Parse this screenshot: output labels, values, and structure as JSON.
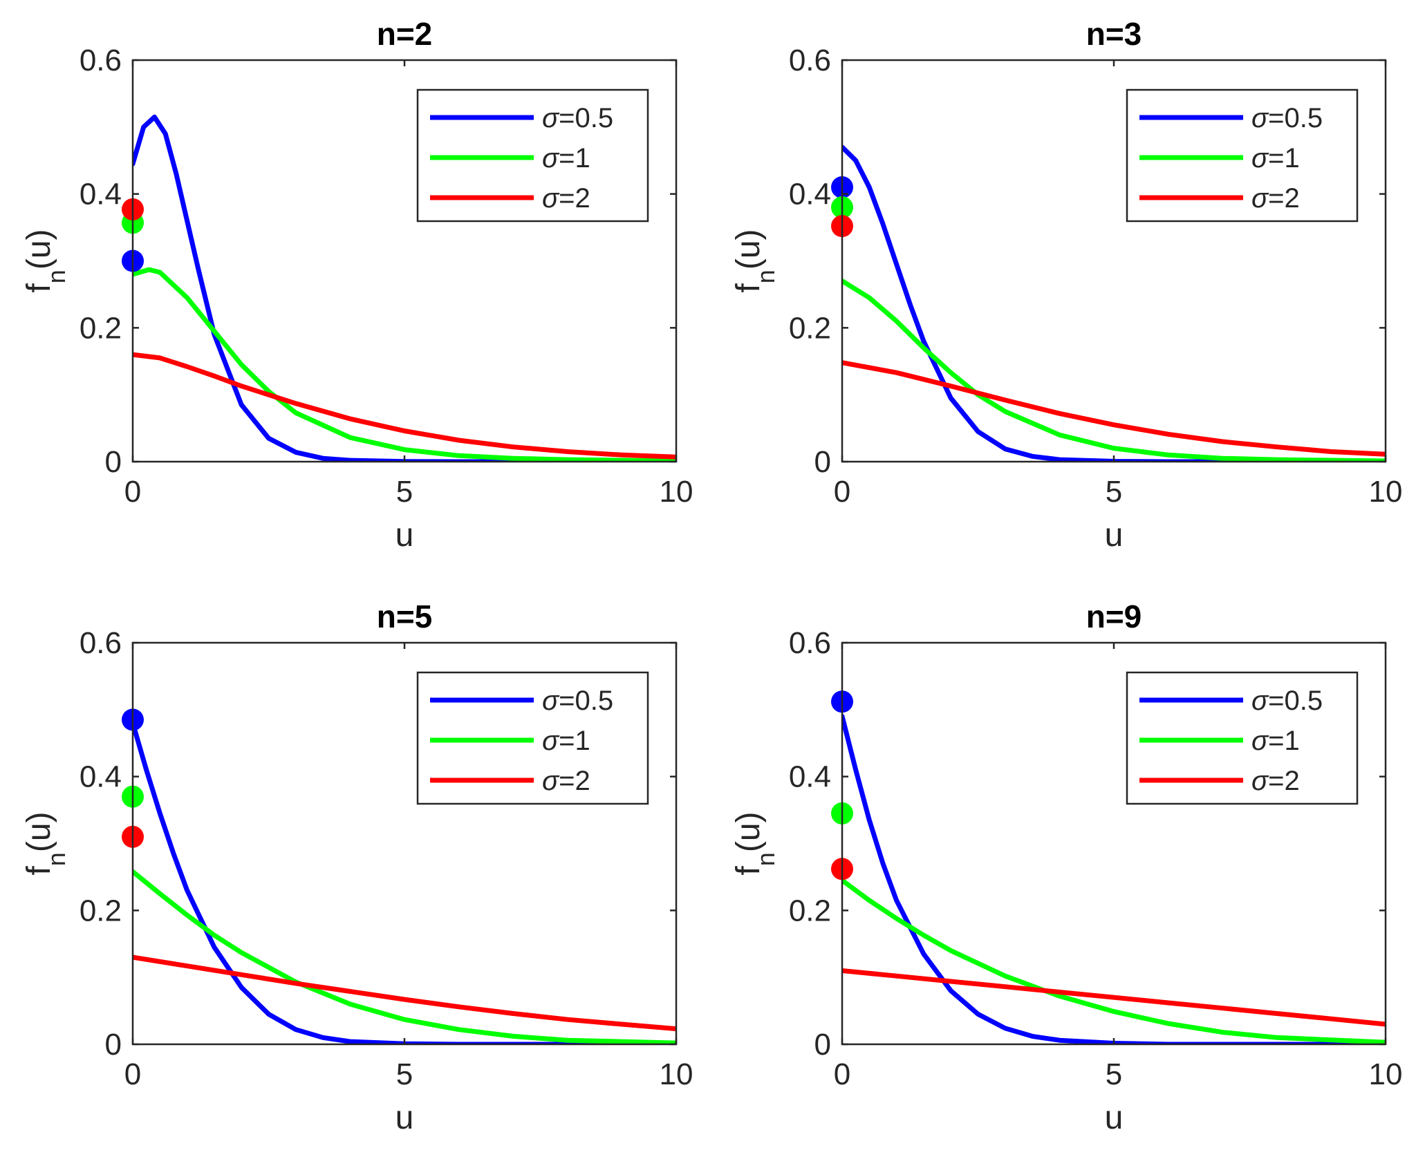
{
  "chart_data": [
    {
      "type": "line",
      "title": "n=2",
      "xlabel": "u",
      "ylabel_main": "f",
      "ylabel_sub": "n",
      "ylabel_tail": "(u)",
      "xlim": [
        0,
        10
      ],
      "ylim": [
        0,
        0.6
      ],
      "xticks": [
        0,
        5,
        10
      ],
      "xtick_labels": [
        "0",
        "5",
        "10"
      ],
      "yticks": [
        0,
        0.2,
        0.4,
        0.6
      ],
      "ytick_labels": [
        "0",
        "0.2",
        "0.4",
        "0.6"
      ],
      "legend_position": "top-right",
      "series": [
        {
          "name": "σ=0.5",
          "symbol": "σ",
          "suffix": "=0.5",
          "color": "#0000ff",
          "x": [
            0,
            0.2,
            0.4,
            0.6,
            0.8,
            1.0,
            1.2,
            1.5,
            2.0,
            2.5,
            3.0,
            3.5,
            4.0,
            5.0,
            6.0,
            8.0,
            10.0
          ],
          "y": [
            0.445,
            0.5,
            0.515,
            0.49,
            0.43,
            0.36,
            0.29,
            0.19,
            0.085,
            0.035,
            0.014,
            0.005,
            0.002,
            0.0003,
            0,
            0,
            0
          ],
          "marker": {
            "x": 0,
            "y": 0.3
          }
        },
        {
          "name": "σ=1",
          "symbol": "σ",
          "suffix": "=1",
          "color": "#00ff00",
          "x": [
            0,
            0.3,
            0.5,
            1.0,
            1.5,
            2.0,
            2.5,
            3.0,
            4.0,
            5.0,
            6.0,
            7.0,
            8.0,
            10.0
          ],
          "y": [
            0.28,
            0.287,
            0.283,
            0.245,
            0.195,
            0.145,
            0.105,
            0.073,
            0.036,
            0.018,
            0.009,
            0.005,
            0.003,
            0.001
          ],
          "marker": {
            "x": 0,
            "y": 0.357
          }
        },
        {
          "name": "σ=2",
          "symbol": "σ",
          "suffix": "=2",
          "color": "#ff0000",
          "x": [
            0,
            0.5,
            1.0,
            1.5,
            2.0,
            3.0,
            4.0,
            5.0,
            6.0,
            7.0,
            8.0,
            9.0,
            10.0
          ],
          "y": [
            0.16,
            0.155,
            0.142,
            0.128,
            0.113,
            0.087,
            0.064,
            0.046,
            0.032,
            0.022,
            0.015,
            0.01,
            0.007
          ],
          "marker": {
            "x": 0,
            "y": 0.377
          }
        }
      ]
    },
    {
      "type": "line",
      "title": "n=3",
      "xlabel": "u",
      "ylabel_main": "f",
      "ylabel_sub": "n",
      "ylabel_tail": "(u)",
      "xlim": [
        0,
        10
      ],
      "ylim": [
        0,
        0.6
      ],
      "xticks": [
        0,
        5,
        10
      ],
      "xtick_labels": [
        "0",
        "5",
        "10"
      ],
      "yticks": [
        0,
        0.2,
        0.4,
        0.6
      ],
      "ytick_labels": [
        "0",
        "0.2",
        "0.4",
        "0.6"
      ],
      "legend_position": "top-right",
      "series": [
        {
          "name": "σ=0.5",
          "symbol": "σ",
          "suffix": "=0.5",
          "color": "#0000ff",
          "x": [
            0,
            0.25,
            0.5,
            0.75,
            1.0,
            1.25,
            1.5,
            2.0,
            2.5,
            3.0,
            3.5,
            4.0,
            5.0,
            6.0,
            8.0,
            10.0
          ],
          "y": [
            0.47,
            0.45,
            0.41,
            0.355,
            0.295,
            0.235,
            0.18,
            0.095,
            0.045,
            0.019,
            0.008,
            0.003,
            0.0005,
            0,
            0,
            0
          ],
          "marker": {
            "x": 0,
            "y": 0.41
          }
        },
        {
          "name": "σ=1",
          "symbol": "σ",
          "suffix": "=1",
          "color": "#00ff00",
          "x": [
            0,
            0.5,
            1.0,
            1.5,
            2.0,
            2.5,
            3.0,
            4.0,
            5.0,
            6.0,
            7.0,
            8.0,
            10.0
          ],
          "y": [
            0.27,
            0.245,
            0.21,
            0.17,
            0.133,
            0.1,
            0.075,
            0.04,
            0.02,
            0.01,
            0.005,
            0.003,
            0.001
          ],
          "marker": {
            "x": 0,
            "y": 0.38
          }
        },
        {
          "name": "σ=2",
          "symbol": "σ",
          "suffix": "=2",
          "color": "#ff0000",
          "x": [
            0,
            1.0,
            2.0,
            3.0,
            4.0,
            5.0,
            6.0,
            7.0,
            8.0,
            9.0,
            10.0
          ],
          "y": [
            0.148,
            0.133,
            0.113,
            0.092,
            0.072,
            0.055,
            0.041,
            0.03,
            0.022,
            0.015,
            0.011
          ],
          "marker": {
            "x": 0,
            "y": 0.352
          }
        }
      ]
    },
    {
      "type": "line",
      "title": "n=5",
      "xlabel": "u",
      "ylabel_main": "f",
      "ylabel_sub": "n",
      "ylabel_tail": "(u)",
      "xlim": [
        0,
        10
      ],
      "ylim": [
        0,
        0.6
      ],
      "xticks": [
        0,
        5,
        10
      ],
      "xtick_labels": [
        "0",
        "5",
        "10"
      ],
      "yticks": [
        0,
        0.2,
        0.4,
        0.6
      ],
      "ytick_labels": [
        "0",
        "0.2",
        "0.4",
        "0.6"
      ],
      "legend_position": "top-right",
      "series": [
        {
          "name": "σ=0.5",
          "symbol": "σ",
          "suffix": "=0.5",
          "color": "#0000ff",
          "x": [
            0,
            0.25,
            0.5,
            0.75,
            1.0,
            1.5,
            2.0,
            2.5,
            3.0,
            3.5,
            4.0,
            5.0,
            6.0,
            8.0,
            10.0
          ],
          "y": [
            0.48,
            0.41,
            0.345,
            0.285,
            0.23,
            0.145,
            0.085,
            0.045,
            0.022,
            0.01,
            0.004,
            0.0008,
            0,
            0,
            0
          ],
          "marker": {
            "x": 0,
            "y": 0.485
          }
        },
        {
          "name": "σ=1",
          "symbol": "σ",
          "suffix": "=1",
          "color": "#00ff00",
          "x": [
            0,
            0.5,
            1.0,
            1.5,
            2.0,
            3.0,
            4.0,
            5.0,
            6.0,
            7.0,
            8.0,
            10.0
          ],
          "y": [
            0.258,
            0.225,
            0.193,
            0.163,
            0.137,
            0.093,
            0.06,
            0.037,
            0.022,
            0.012,
            0.006,
            0.002
          ],
          "marker": {
            "x": 0,
            "y": 0.37
          }
        },
        {
          "name": "σ=2",
          "symbol": "σ",
          "suffix": "=2",
          "color": "#ff0000",
          "x": [
            0,
            1.0,
            2.0,
            3.0,
            4.0,
            5.0,
            6.0,
            7.0,
            8.0,
            9.0,
            10.0
          ],
          "y": [
            0.13,
            0.117,
            0.104,
            0.091,
            0.079,
            0.067,
            0.056,
            0.046,
            0.037,
            0.03,
            0.023
          ],
          "marker": {
            "x": 0,
            "y": 0.31
          }
        }
      ]
    },
    {
      "type": "line",
      "title": "n=9",
      "xlabel": "u",
      "ylabel_main": "f",
      "ylabel_sub": "n",
      "ylabel_tail": "(u)",
      "xlim": [
        0,
        10
      ],
      "ylim": [
        0,
        0.6
      ],
      "xticks": [
        0,
        5,
        10
      ],
      "xtick_labels": [
        "0",
        "5",
        "10"
      ],
      "yticks": [
        0,
        0.2,
        0.4,
        0.6
      ],
      "ytick_labels": [
        "0",
        "0.2",
        "0.4",
        "0.6"
      ],
      "legend_position": "top-right",
      "series": [
        {
          "name": "σ=0.5",
          "symbol": "σ",
          "suffix": "=0.5",
          "color": "#0000ff",
          "x": [
            0,
            0.25,
            0.5,
            0.75,
            1.0,
            1.5,
            2.0,
            2.5,
            3.0,
            3.5,
            4.0,
            5.0,
            6.0,
            8.0,
            10.0
          ],
          "y": [
            0.49,
            0.41,
            0.335,
            0.27,
            0.215,
            0.135,
            0.08,
            0.045,
            0.024,
            0.012,
            0.006,
            0.0015,
            0,
            0,
            0
          ],
          "marker": {
            "x": 0,
            "y": 0.512
          }
        },
        {
          "name": "σ=1",
          "symbol": "σ",
          "suffix": "=1",
          "color": "#00ff00",
          "x": [
            0,
            0.5,
            1.0,
            1.5,
            2.0,
            3.0,
            4.0,
            5.0,
            6.0,
            7.0,
            8.0,
            10.0
          ],
          "y": [
            0.245,
            0.215,
            0.188,
            0.163,
            0.14,
            0.102,
            0.072,
            0.049,
            0.031,
            0.018,
            0.01,
            0.003
          ],
          "marker": {
            "x": 0,
            "y": 0.345
          }
        },
        {
          "name": "σ=2",
          "symbol": "σ",
          "suffix": "=2",
          "color": "#ff0000",
          "x": [
            0,
            1.0,
            2.0,
            3.0,
            4.0,
            5.0,
            6.0,
            7.0,
            8.0,
            9.0,
            10.0
          ],
          "y": [
            0.11,
            0.102,
            0.094,
            0.086,
            0.078,
            0.07,
            0.062,
            0.054,
            0.046,
            0.038,
            0.03
          ],
          "marker": {
            "x": 0,
            "y": 0.262
          }
        }
      ]
    }
  ]
}
